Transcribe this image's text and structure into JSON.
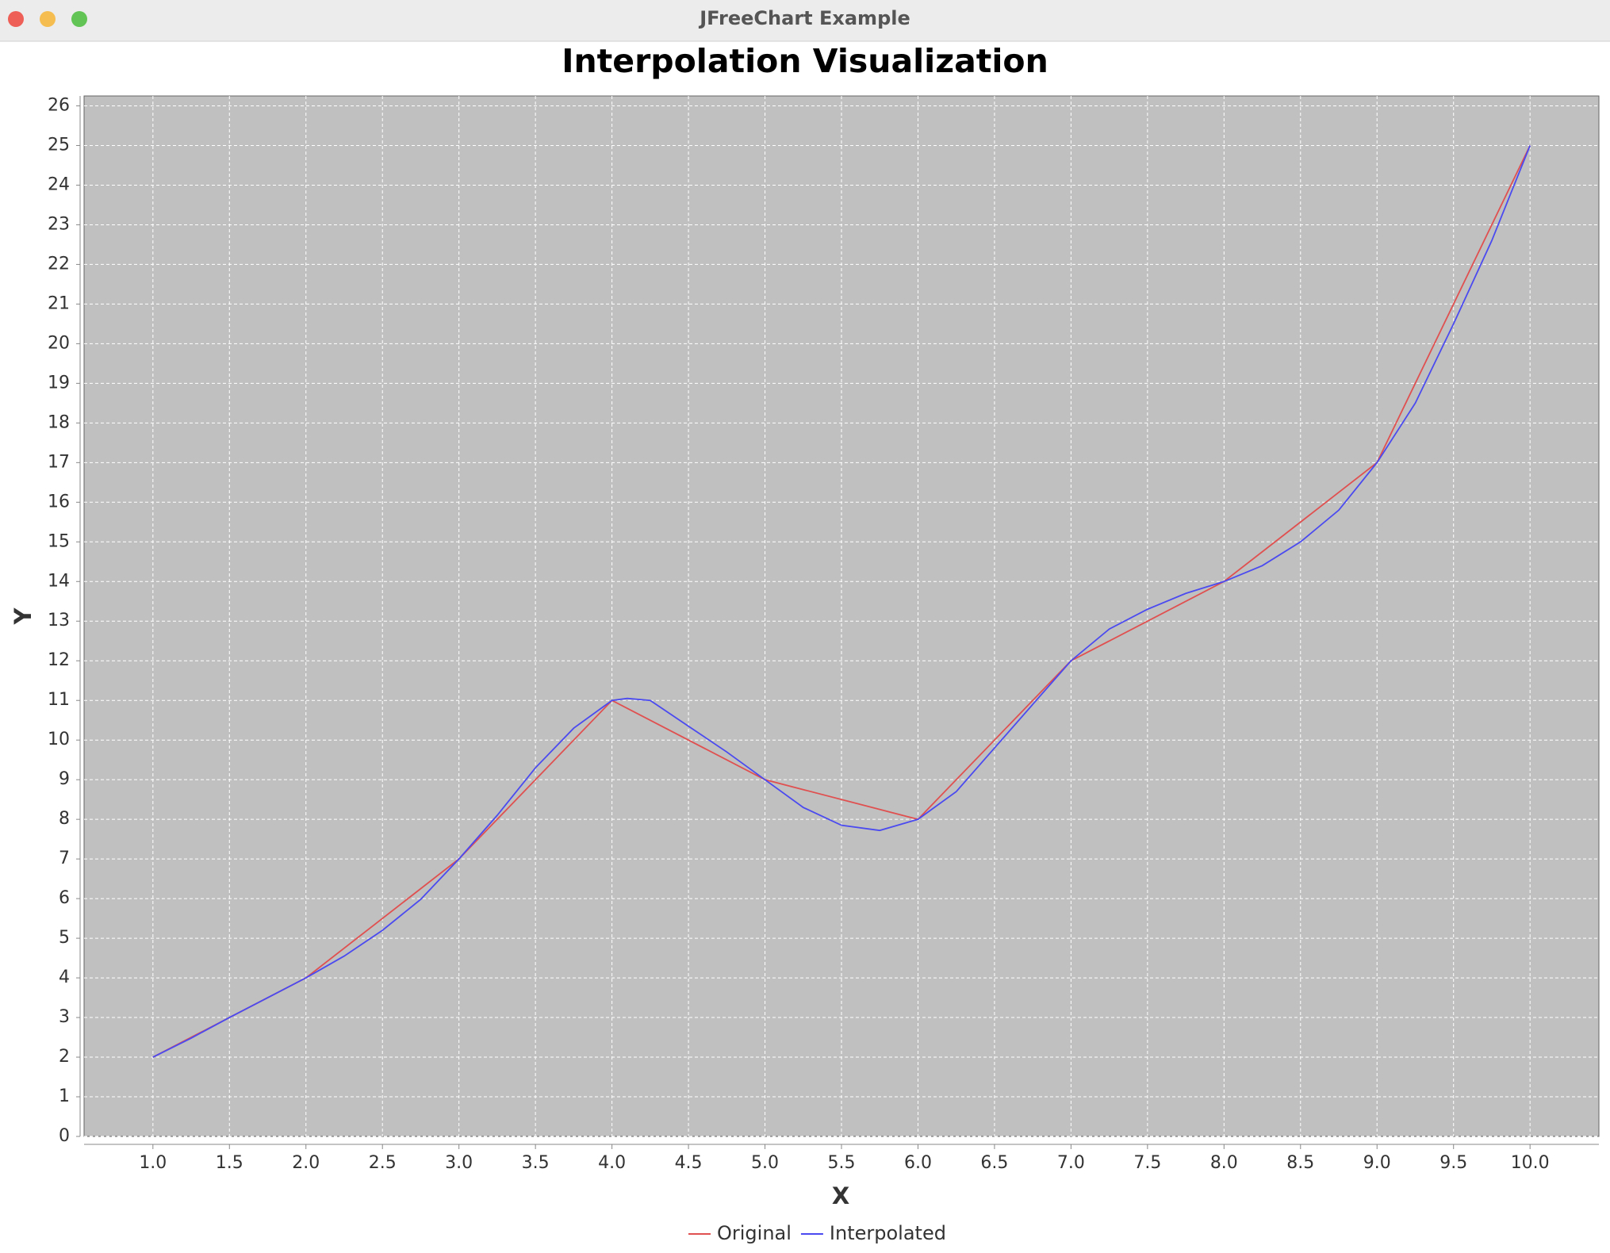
{
  "window_title": "JFreeChart Example",
  "chart_data": {
    "type": "line",
    "title": "Interpolation Visualization",
    "x_label": "X",
    "y_label": "Y",
    "xlim": [
      0.55,
      10.45
    ],
    "xticks": [
      {
        "value": 1,
        "label": "1.0"
      },
      {
        "value": 1.5,
        "label": "1.5"
      },
      {
        "value": 2,
        "label": "2.0"
      },
      {
        "value": 2.5,
        "label": "2.5"
      },
      {
        "value": 3,
        "label": "3.0"
      },
      {
        "value": 3.5,
        "label": "3.5"
      },
      {
        "value": 4,
        "label": "4.0"
      },
      {
        "value": 4.5,
        "label": "4.5"
      },
      {
        "value": 5,
        "label": "5.0"
      },
      {
        "value": 5.5,
        "label": "5.5"
      },
      {
        "value": 6,
        "label": "6.0"
      },
      {
        "value": 6.5,
        "label": "6.5"
      },
      {
        "value": 7,
        "label": "7.0"
      },
      {
        "value": 7.5,
        "label": "7.5"
      },
      {
        "value": 8,
        "label": "8.0"
      },
      {
        "value": 8.5,
        "label": "8.5"
      },
      {
        "value": 9,
        "label": "9.0"
      },
      {
        "value": 9.5,
        "label": "9.5"
      },
      {
        "value": 10,
        "label": "10.0"
      }
    ],
    "ylim": [
      0,
      26.25
    ],
    "yticks": [
      0,
      1,
      2,
      3,
      4,
      5,
      6,
      7,
      8,
      9,
      10,
      11,
      12,
      13,
      14,
      15,
      16,
      17,
      18,
      19,
      20,
      21,
      22,
      23,
      24,
      25,
      26
    ],
    "grid": true,
    "background": "#c0c0c0",
    "legend": "bottom",
    "series": [
      {
        "name": "Original",
        "color": "#e05050",
        "x": [
          1,
          2,
          3,
          4,
          5,
          6,
          7,
          8,
          9,
          10
        ],
        "values": [
          2,
          4,
          7,
          11,
          9,
          8,
          12,
          14,
          17,
          25
        ]
      },
      {
        "name": "Interpolated",
        "color": "#4a4af0",
        "x": [
          1,
          1.25,
          1.5,
          1.75,
          2,
          2.25,
          2.5,
          2.75,
          3,
          3.25,
          3.5,
          3.75,
          4,
          4.1,
          4.25,
          4.5,
          4.75,
          5,
          5.25,
          5.5,
          5.75,
          6,
          6.25,
          6.5,
          6.75,
          7,
          7.25,
          7.5,
          7.75,
          8,
          8.25,
          8.5,
          8.75,
          9,
          9.25,
          9.5,
          9.75,
          10
        ],
        "values": [
          2,
          2.48,
          3,
          3.5,
          4,
          4.55,
          5.2,
          5.98,
          7,
          8.1,
          9.3,
          10.3,
          11,
          11.05,
          11,
          10.35,
          9.7,
          9,
          8.3,
          7.85,
          7.72,
          8,
          8.7,
          9.8,
          10.9,
          12,
          12.8,
          13.3,
          13.7,
          14,
          14.4,
          15,
          15.8,
          17,
          18.5,
          20.5,
          22.6,
          25
        ]
      }
    ]
  }
}
